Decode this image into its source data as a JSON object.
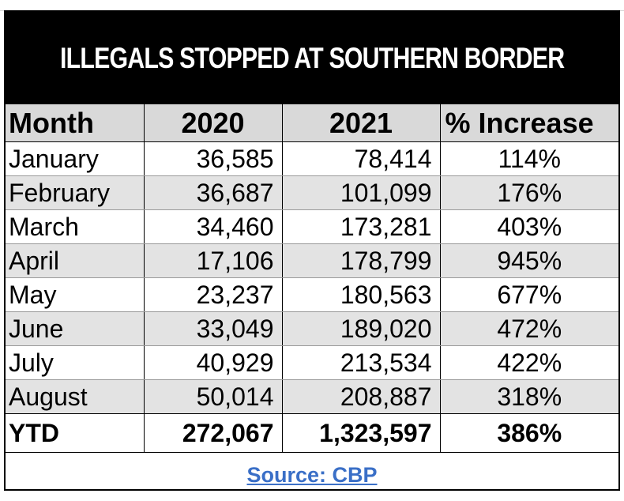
{
  "title": "ILLEGALS STOPPED AT SOUTHERN BORDER",
  "headers": {
    "month": "Month",
    "year1": "2020",
    "year2": "2021",
    "pct": "% Increase"
  },
  "rows": [
    {
      "month": "January",
      "v2020": "36,585",
      "v2021": "78,414",
      "pct": "114%"
    },
    {
      "month": "February",
      "v2020": "36,687",
      "v2021": "101,099",
      "pct": "176%"
    },
    {
      "month": "March",
      "v2020": "34,460",
      "v2021": "173,281",
      "pct": "403%"
    },
    {
      "month": "April",
      "v2020": "17,106",
      "v2021": "178,799",
      "pct": "945%"
    },
    {
      "month": "May",
      "v2020": "23,237",
      "v2021": "180,563",
      "pct": "677%"
    },
    {
      "month": "June",
      "v2020": "33,049",
      "v2021": "189,020",
      "pct": "472%"
    },
    {
      "month": "July",
      "v2020": "40,929",
      "v2021": "213,534",
      "pct": "422%"
    },
    {
      "month": "August",
      "v2020": "50,014",
      "v2021": "208,887",
      "pct": "318%"
    }
  ],
  "total": {
    "month": "YTD",
    "v2020": "272,067",
    "v2021": "1,323,597",
    "pct": "386%"
  },
  "source": {
    "label": "Source: CBP"
  },
  "colors": {
    "title_bg": "#000000",
    "title_fg": "#ffffff",
    "stripe": "#e3e3e3",
    "link": "#3a6fc7"
  }
}
